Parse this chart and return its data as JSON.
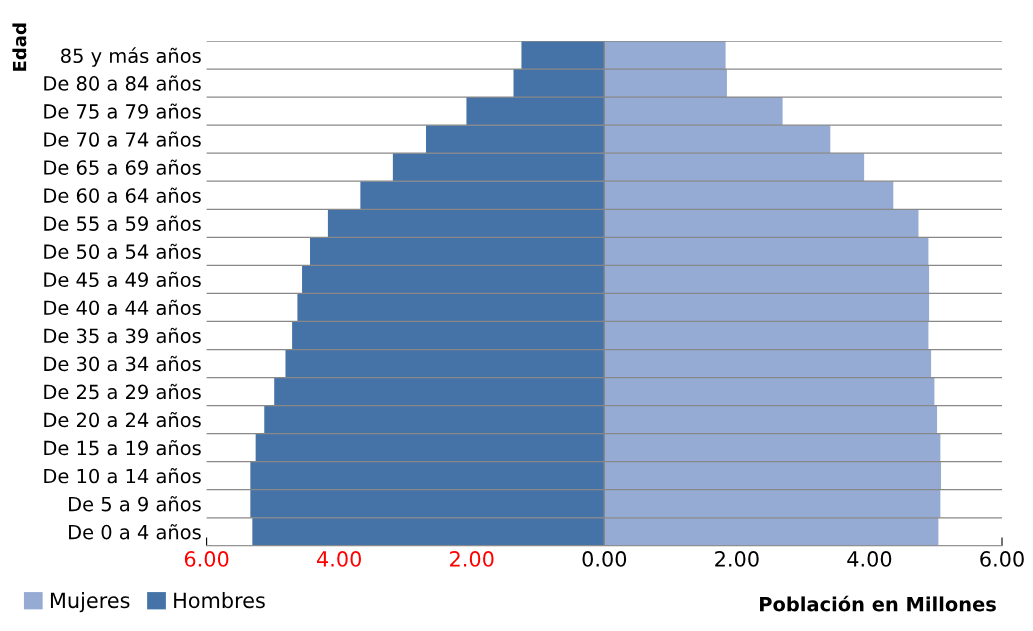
{
  "chart_data": {
    "type": "bar",
    "orientation": "horizontal",
    "ylabel": "Edad",
    "xlabel": "Población en Millones",
    "categories": [
      "85 y más años",
      "De 80 a 84 años",
      "De 75 a 79 años",
      "De 70 a 74 años",
      "De 65 a 69 años",
      "De 60 a 64 años",
      "De 55 a 59 años",
      "De 50 a 54 años",
      "De 45 a 49 años",
      "De 40 a 44 años",
      "De 35 a 39 años",
      "De 30 a 34 años",
      "De 25 a 29 años",
      "De 20 a 24 años",
      "De 15 a 19 años",
      "De 10 a 14 años",
      "De 5 a 9 años",
      "De 0 a 4 años"
    ],
    "series": [
      {
        "name": "Mujeres",
        "color": "#95abd3",
        "values": [
          1.83,
          1.85,
          2.69,
          3.41,
          3.92,
          4.36,
          4.74,
          4.89,
          4.9,
          4.9,
          4.89,
          4.93,
          4.98,
          5.02,
          5.07,
          5.08,
          5.07,
          5.04
        ]
      },
      {
        "name": "Hombres",
        "color": "#4673a7",
        "values": [
          -1.25,
          -1.37,
          -2.08,
          -2.69,
          -3.19,
          -3.68,
          -4.17,
          -4.44,
          -4.56,
          -4.63,
          -4.71,
          -4.81,
          -4.98,
          -5.13,
          -5.26,
          -5.34,
          -5.34,
          -5.31
        ]
      }
    ],
    "xlim": [
      -6,
      6
    ],
    "xticks": [
      {
        "value": -6,
        "label": "6.00"
      },
      {
        "value": -4,
        "label": "4.00"
      },
      {
        "value": -2,
        "label": "2.00"
      },
      {
        "value": 0,
        "label": "0.00"
      },
      {
        "value": 2,
        "label": "2.00"
      },
      {
        "value": 4,
        "label": "4.00"
      },
      {
        "value": 6,
        "label": "6.00"
      }
    ],
    "grid": "y",
    "legend": "bottom left",
    "stacked": true
  }
}
